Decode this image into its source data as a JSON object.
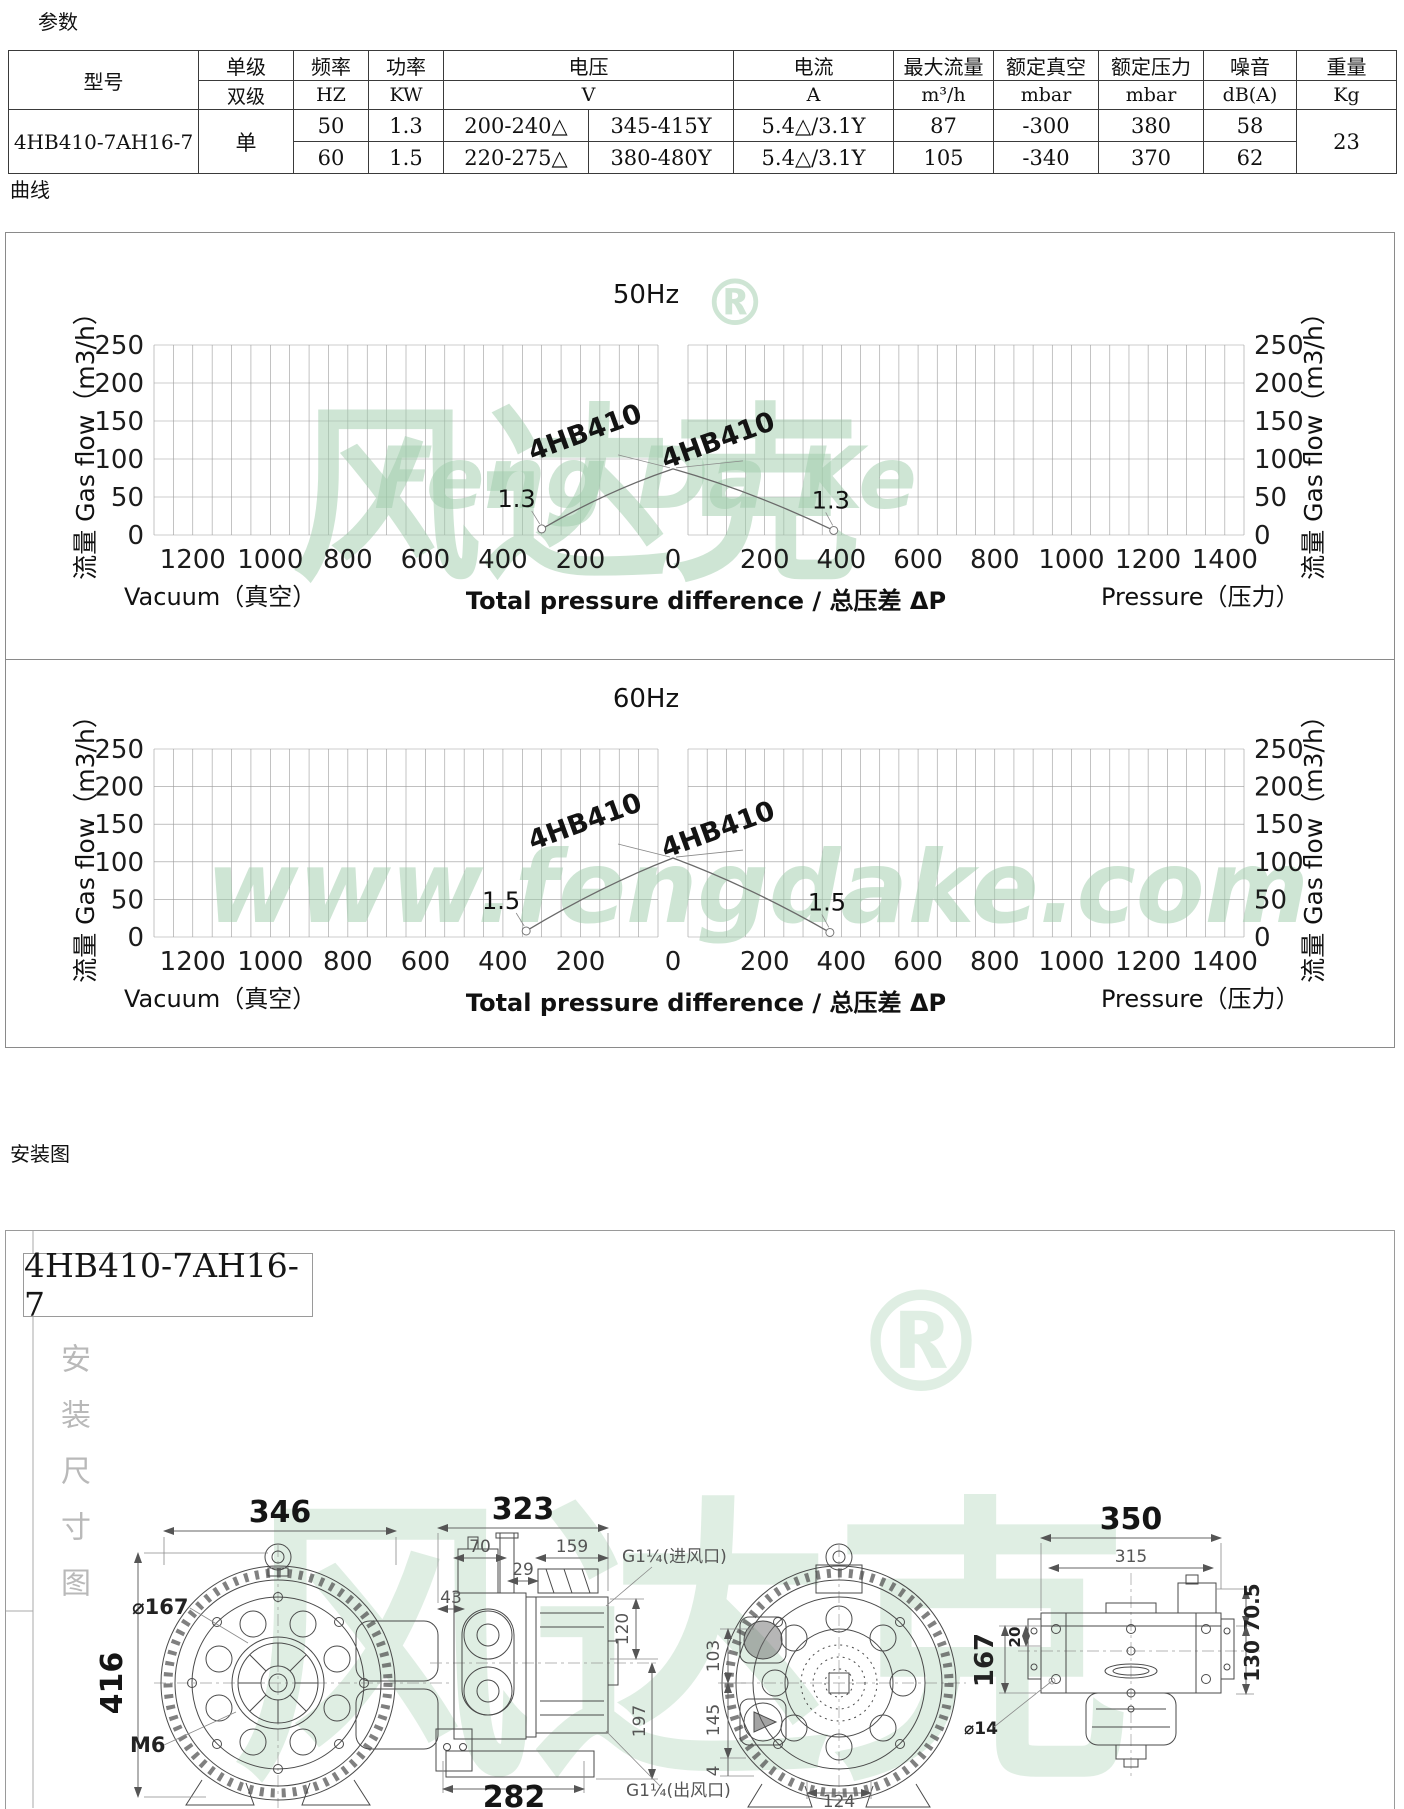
{
  "sections": {
    "params": "参数",
    "curves": "曲线",
    "install": "安装图"
  },
  "table": {
    "headers": {
      "model": "型号",
      "stage_top": "单级",
      "stage_bottom": "双级",
      "freq": "频率",
      "freq_unit": "HZ",
      "power": "功率",
      "power_unit": "KW",
      "voltage": "电压",
      "voltage_unit": "V",
      "current": "电流",
      "current_unit": "A",
      "maxflow": "最大流量",
      "maxflow_unit": "m³/h",
      "vacuum": "额定真空",
      "vacuum_unit": "mbar",
      "pressure": "额定压力",
      "pressure_unit": "mbar",
      "noise": "噪音",
      "noise_unit": "dB(A)",
      "weight": "重量",
      "weight_unit": "Kg"
    },
    "model": "4HB410-7AH16-7",
    "stage": "单",
    "rows": [
      {
        "hz": "50",
        "kw": "1.3",
        "v1": "200-240△",
        "v2": "345-415Y",
        "a": "5.4△/3.1Y",
        "flow": "87",
        "vac": "-300",
        "pres": "380",
        "db": "58"
      },
      {
        "hz": "60",
        "kw": "1.5",
        "v1": "220-275△",
        "v2": "380-480Y",
        "a": "5.4△/3.1Y",
        "flow": "105",
        "vac": "-340",
        "pres": "370",
        "db": "62"
      }
    ],
    "weight": "23"
  },
  "chart_data": [
    {
      "type": "line",
      "title": "50Hz",
      "ylabel": "流量 Gas flow（m3/h）",
      "xlabel_left": "Vacuum（真空）",
      "xlabel_center": "Total pressure difference / 总压差  ΔP",
      "xlabel_right": "Pressure（压力）",
      "ylim": [
        0,
        250
      ],
      "ytick_step": 50,
      "grid": "on",
      "vacuum_axis_max": 1300,
      "pressure_axis_max": 1450,
      "vacuum_ticks": [
        1200,
        1000,
        800,
        600,
        400,
        200
      ],
      "zero_tick": "0",
      "pressure_ticks": [
        200,
        400,
        600,
        800,
        1000,
        1200,
        1400
      ],
      "series_label": "4HB410",
      "peak_flow": 87,
      "vacuum_end": {
        "dp": 300,
        "flow": 8,
        "power_label": "1.3"
      },
      "pressure_end": {
        "dp": 380,
        "flow": 6,
        "power_label": "1.3"
      },
      "watermark": {
        "cjk": "风达克",
        "reg": "®",
        "latin": "Feng Da Ke"
      }
    },
    {
      "type": "line",
      "title": "60Hz",
      "ylabel": "流量 Gas flow（m3/h）",
      "xlabel_left": "Vacuum（真空）",
      "xlabel_center": "Total pressure difference / 总压差  ΔP",
      "xlabel_right": "Pressure（压力）",
      "ylim": [
        0,
        250
      ],
      "ytick_step": 50,
      "grid": "on",
      "vacuum_axis_max": 1300,
      "pressure_axis_max": 1450,
      "vacuum_ticks": [
        1200,
        1000,
        800,
        600,
        400,
        200
      ],
      "zero_tick": "0",
      "pressure_ticks": [
        200,
        400,
        600,
        800,
        1000,
        1200,
        1400
      ],
      "series_label": "4HB410",
      "peak_flow": 105,
      "vacuum_end": {
        "dp": 340,
        "flow": 8,
        "power_label": "1.5"
      },
      "pressure_end": {
        "dp": 370,
        "flow": 6,
        "power_label": "1.5"
      },
      "watermark": {
        "latin": "www.fengdake.com"
      }
    }
  ],
  "install": {
    "model_title": "4HB410-7AH16-7",
    "side_label": "安装尺寸图",
    "watermark": {
      "text": "风达克",
      "reg": "®"
    },
    "front": {
      "width": "346",
      "height": "416",
      "flange": "⌀167",
      "thread": "M6"
    },
    "side": {
      "overall": "323",
      "d70": "70",
      "d159": "159",
      "d29": "29",
      "d43": "43",
      "d120": "120",
      "d197": "197",
      "base": "282",
      "inlet": "G1¼(进风口)",
      "outlet": "G1¼(出风口)"
    },
    "rear": {
      "d103": "103",
      "d145": "145",
      "d4": "4",
      "d124": "124"
    },
    "top": {
      "overall": "350",
      "inner": "315",
      "d705": "70.5",
      "d130": "130",
      "d167": "167",
      "d20": "20",
      "hole": "⌀14"
    }
  }
}
